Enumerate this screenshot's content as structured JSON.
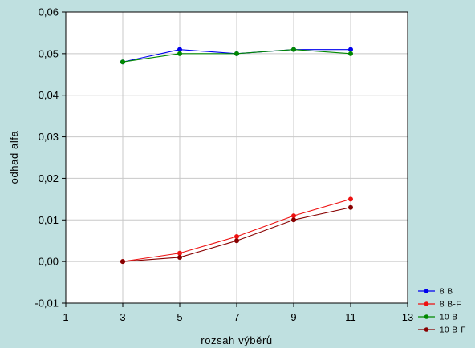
{
  "chart_data": {
    "type": "line",
    "xlabel": "rozsah výběrů",
    "ylabel": "odhad alfa",
    "xlim": [
      1,
      13
    ],
    "ylim": [
      -0.01,
      0.06
    ],
    "xticks": [
      1,
      3,
      5,
      7,
      9,
      11,
      13
    ],
    "yticks": [
      -0.01,
      0.0,
      0.01,
      0.02,
      0.03,
      0.04,
      0.05,
      0.06
    ],
    "xtick_labels": [
      "1",
      "3",
      "5",
      "7",
      "9",
      "11",
      "13"
    ],
    "ytick_labels": [
      "-0,01",
      "0,00",
      "0,01",
      "0,02",
      "0,03",
      "0,04",
      "0,05",
      "0,06"
    ],
    "grid": true,
    "legend_position": "bottom-right",
    "x": [
      3,
      5,
      7,
      9,
      11
    ],
    "series": [
      {
        "name": "8 B",
        "color": "#0000ee",
        "values": [
          0.048,
          0.051,
          0.05,
          0.051,
          0.051
        ]
      },
      {
        "name": "8 B-F",
        "color": "#ee1111",
        "values": [
          0.0,
          0.002,
          0.006,
          0.011,
          0.015
        ]
      },
      {
        "name": "10 B",
        "color": "#008800",
        "values": [
          0.048,
          0.05,
          0.05,
          0.051,
          0.05
        ]
      },
      {
        "name": "10 B-F",
        "color": "#880000",
        "values": [
          0.0,
          0.001,
          0.005,
          0.01,
          0.013
        ]
      }
    ]
  }
}
